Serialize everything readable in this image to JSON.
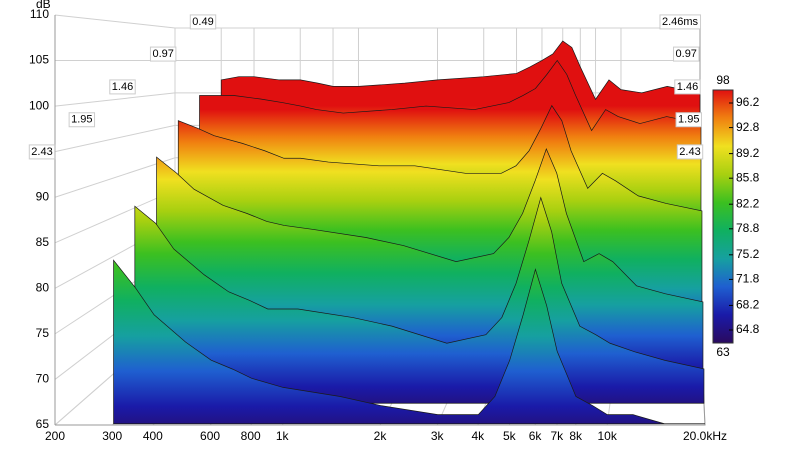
{
  "chart_data": {
    "type": "waterfall",
    "y_label": "dB",
    "x": [
      300,
      350,
      400,
      500,
      600,
      700,
      800,
      1000,
      1500,
      2000,
      3000,
      4000,
      4500,
      5000,
      5500,
      6000,
      6500,
      7000,
      8000,
      9000,
      10000,
      12000,
      15000,
      20000
    ],
    "slices": [
      {
        "time": 0,
        "values": [
          102,
          102.5,
          102.5,
          102,
          102,
          101.5,
          101,
          101,
          101.5,
          102,
          102.5,
          103,
          104,
          105,
          106,
          108,
          107,
          104,
          99,
          102,
          100.5,
          100,
          101,
          100
        ]
      },
      {
        "time": 0.49,
        "values": [
          100,
          100,
          100,
          99.5,
          99,
          98.5,
          98,
          97.5,
          98,
          98.5,
          98,
          99,
          100,
          101,
          103,
          105,
          103,
          100,
          95,
          98,
          97,
          96,
          97,
          96
        ]
      },
      {
        "time": 0.97,
        "values": [
          97,
          96,
          95,
          94,
          93,
          92,
          92,
          91.5,
          91,
          91,
          90,
          90,
          91,
          93,
          96,
          99,
          97,
          93,
          88,
          90,
          89,
          87,
          86,
          85
        ]
      },
      {
        "time": 1.46,
        "values": [
          93,
          91,
          89,
          87,
          86,
          85,
          84.5,
          84,
          83,
          82,
          80,
          81,
          83,
          86,
          90,
          94,
          91,
          86,
          80,
          81,
          80,
          77,
          76,
          75
        ]
      },
      {
        "time": 1.95,
        "values": [
          88,
          86,
          83,
          80,
          78,
          77,
          76,
          76,
          75,
          74,
          72,
          73,
          75,
          79,
          84,
          89,
          85,
          79,
          74,
          73,
          72,
          71,
          70,
          69
        ]
      },
      {
        "time": 2.43,
        "values": [
          83,
          80,
          77,
          74,
          72,
          71,
          70,
          69,
          68,
          67,
          66,
          66,
          68,
          72,
          77,
          82,
          78,
          73,
          68,
          67,
          66,
          66,
          65,
          65
        ]
      }
    ],
    "xlim": [
      200,
      20000
    ],
    "xscale": "log",
    "xticks": [
      200,
      300,
      400,
      600,
      800,
      {
        "value": 1000,
        "label": "1k"
      },
      {
        "value": 2000,
        "label": "2k"
      },
      {
        "value": 3000,
        "label": "3k"
      },
      {
        "value": 4000,
        "label": "4k"
      },
      {
        "value": 5000,
        "label": "5k"
      },
      {
        "value": 6000,
        "label": "6k"
      },
      {
        "value": 7000,
        "label": "7k"
      },
      {
        "value": 8000,
        "label": "8k"
      },
      {
        "value": 10000,
        "label": "10k"
      },
      {
        "value": 20000,
        "label": "20.0kHz"
      }
    ],
    "ylim": [
      65,
      110
    ],
    "yticks": [
      65,
      70,
      75,
      80,
      85,
      90,
      95,
      100,
      105,
      110
    ],
    "zlim": [
      0,
      2.46
    ],
    "zticks": [
      0.49,
      0.97,
      1.46,
      1.95,
      2.43
    ],
    "zmax_tick": {
      "value": 2.46,
      "label": "2.46ms"
    },
    "colorbar": {
      "lim": [
        63,
        98
      ],
      "ticks": [
        64.8,
        68.2,
        71.8,
        75.2,
        78.8,
        82.2,
        85.8,
        89.2,
        92.8,
        96.2
      ],
      "colors": [
        "#2a0a5e",
        "#1a1aa8",
        "#1f5fd0",
        "#16a0a0",
        "#10b060",
        "#3cc020",
        "#a8d010",
        "#f0e020",
        "#f08010",
        "#e01010"
      ]
    }
  }
}
